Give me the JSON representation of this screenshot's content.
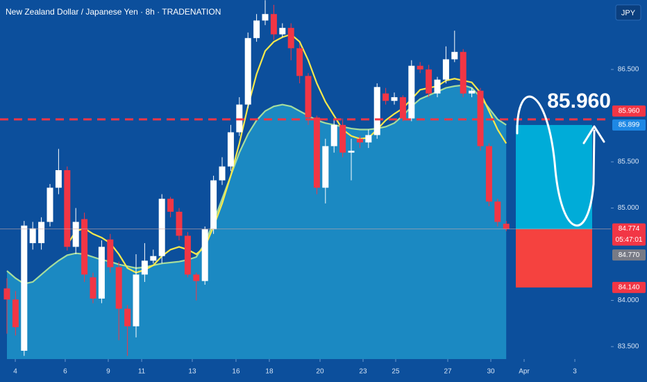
{
  "chart_data": {
    "type": "candlestick",
    "title": "New Zealand Dollar / Japanese Yen · 8h · TRADENATION",
    "currency": "JPY",
    "open": [
      84.13,
      84.01,
      83.455,
      84.62,
      84.62,
      84.85,
      85.22,
      85.41,
      84.58,
      84.88,
      84.25,
      84.02,
      84.66,
      84.36,
      83.91,
      83.72,
      84.28,
      84.43,
      84.48,
      85.1,
      84.96,
      84.7,
      84.28,
      84.21,
      84.77,
      85.3,
      85.45,
      85.82,
      86.12,
      86.84,
      87.03,
      87.1,
      86.88,
      86.95,
      86.73,
      86.43,
      85.98,
      85.22,
      85.67,
      85.9,
      85.6,
      85.75,
      85.71,
      85.79,
      86.24,
      86.16,
      86.2,
      85.97,
      86.54,
      86.5,
      86.24,
      86.39,
      86.61,
      86.69,
      86.24,
      86.27,
      85.67,
      85.07,
      84.83
    ],
    "high": [
      84.24,
      84.1,
      84.86,
      84.85,
      84.9,
      85.26,
      85.64,
      85.45,
      85.0,
      84.95,
      84.3,
      84.65,
      84.72,
      84.42,
      83.95,
      84.5,
      84.62,
      84.55,
      85.15,
      85.12,
      85.0,
      84.74,
      84.3,
      84.8,
      85.35,
      85.55,
      85.9,
      86.2,
      86.9,
      87.1,
      87.25,
      87.2,
      87.0,
      87.0,
      86.78,
      86.46,
      86.0,
      85.75,
      85.95,
      85.97,
      85.75,
      85.78,
      85.85,
      86.35,
      86.3,
      86.25,
      86.22,
      86.6,
      86.58,
      86.55,
      86.42,
      86.75,
      86.92,
      86.72,
      86.3,
      86.3,
      85.7,
      85.1,
      84.86
    ],
    "low": [
      83.64,
      83.62,
      83.4,
      84.55,
      84.55,
      84.8,
      85.15,
      84.54,
      84.5,
      84.2,
      83.97,
      83.97,
      84.3,
      83.57,
      83.4,
      83.6,
      84.2,
      84.4,
      84.4,
      84.9,
      84.65,
      84.25,
      84.0,
      84.17,
      84.72,
      85.25,
      85.4,
      85.78,
      86.08,
      86.8,
      86.98,
      86.82,
      86.85,
      86.6,
      86.35,
      85.9,
      85.15,
      85.05,
      85.6,
      85.55,
      85.3,
      85.65,
      85.65,
      85.75,
      86.12,
      86.12,
      85.94,
      85.94,
      86.46,
      86.2,
      86.2,
      86.35,
      86.58,
      86.2,
      86.2,
      85.62,
      85.02,
      84.8,
      84.75
    ],
    "close": [
      84.01,
      83.71,
      84.81,
      84.78,
      84.85,
      85.22,
      85.41,
      84.58,
      84.85,
      84.28,
      84.02,
      84.58,
      84.36,
      83.91,
      83.72,
      84.28,
      84.43,
      84.48,
      85.1,
      84.96,
      84.7,
      84.28,
      84.21,
      84.77,
      85.3,
      85.45,
      85.82,
      86.12,
      86.84,
      87.03,
      87.1,
      86.88,
      86.95,
      86.73,
      86.43,
      85.98,
      85.22,
      85.67,
      85.9,
      85.6,
      85.62,
      85.71,
      85.79,
      86.31,
      86.16,
      86.2,
      85.97,
      86.54,
      86.5,
      86.24,
      86.39,
      86.61,
      86.69,
      86.24,
      86.27,
      85.67,
      85.07,
      84.85,
      84.774
    ],
    "up_color": "#ffffff",
    "down_color": "#f23645",
    "lines": [
      {
        "color": "#a6dd9c",
        "fill": "#1f93c9",
        "values": [
          84.32,
          84.24,
          84.18,
          84.2,
          84.28,
          84.36,
          84.43,
          84.49,
          84.51,
          84.5,
          84.47,
          84.44,
          84.42,
          84.39,
          84.37,
          84.35,
          84.36,
          84.38,
          84.4,
          84.41,
          84.42,
          84.44,
          84.47,
          84.62,
          84.85,
          85.1,
          85.35,
          85.6,
          85.8,
          85.95,
          86.05,
          86.1,
          86.12,
          86.1,
          86.05,
          86.0,
          85.95,
          85.92,
          85.9,
          85.88,
          85.86,
          85.85,
          85.85,
          85.86,
          85.88,
          85.92,
          86.0,
          86.1,
          86.18,
          86.22,
          86.26,
          86.3,
          86.32,
          86.33,
          86.3,
          86.2,
          86.08,
          85.96,
          85.9
        ]
      },
      {
        "color": "#f7e94b",
        "values": [
          null,
          null,
          null,
          null,
          null,
          null,
          null,
          84.6,
          84.75,
          84.78,
          84.72,
          84.68,
          84.62,
          84.5,
          84.35,
          84.3,
          84.33,
          84.38,
          84.48,
          84.55,
          84.58,
          84.55,
          84.5,
          84.58,
          84.8,
          85.05,
          85.35,
          85.7,
          86.1,
          86.45,
          86.7,
          86.8,
          86.85,
          86.88,
          86.8,
          86.6,
          86.35,
          86.15,
          86.0,
          85.85,
          85.78,
          85.75,
          85.76,
          85.85,
          85.95,
          86.02,
          86.08,
          86.18,
          86.28,
          86.3,
          86.32,
          86.38,
          86.4,
          86.38,
          86.36,
          86.25,
          86.05,
          85.85,
          85.7
        ]
      }
    ],
    "xlim": [
      -0.806,
      70.16
    ],
    "xticks": [
      {
        "value": 0.97,
        "label": "4"
      },
      {
        "value": 6.77,
        "label": "6"
      },
      {
        "value": 11.77,
        "label": "9"
      },
      {
        "value": 15.65,
        "label": "11"
      },
      {
        "value": 21.53,
        "label": "13"
      },
      {
        "value": 26.61,
        "label": "16"
      },
      {
        "value": 30.48,
        "label": "18"
      },
      {
        "value": 36.37,
        "label": "20"
      },
      {
        "value": 41.37,
        "label": "23"
      },
      {
        "value": 45.16,
        "label": "25"
      },
      {
        "value": 51.21,
        "label": "27"
      },
      {
        "value": 56.21,
        "label": "30"
      },
      {
        "value": 60.08,
        "label": "Apr"
      },
      {
        "value": 65.97,
        "label": "3"
      }
    ],
    "ylim": [
      83.365,
      87.252
    ],
    "yticks": [
      {
        "value": 86.5,
        "label": "86.500"
      },
      {
        "value": 85.5,
        "label": "85.500"
      },
      {
        "value": 85.0,
        "label": "85.000"
      },
      {
        "value": 84.0,
        "label": "84.000"
      },
      {
        "value": 83.5,
        "label": "83.500"
      }
    ],
    "levels": {
      "target": {
        "value": 85.96,
        "label": "85.960",
        "color": "#f23645"
      },
      "take_profit": {
        "value": 85.899,
        "label": "85.899",
        "color": "#1e88e5"
      },
      "last_price": {
        "value": 84.774,
        "label": "84.774",
        "countdown": "05:47:01",
        "color": "#f23645"
      },
      "entry": {
        "value": 84.77,
        "label": "84.770",
        "color": "#787b86"
      },
      "stop": {
        "value": 84.14,
        "label": "84.140",
        "color": "#f23645"
      }
    },
    "profit_color": "#00acd8",
    "loss_color": "#f5423f"
  }
}
